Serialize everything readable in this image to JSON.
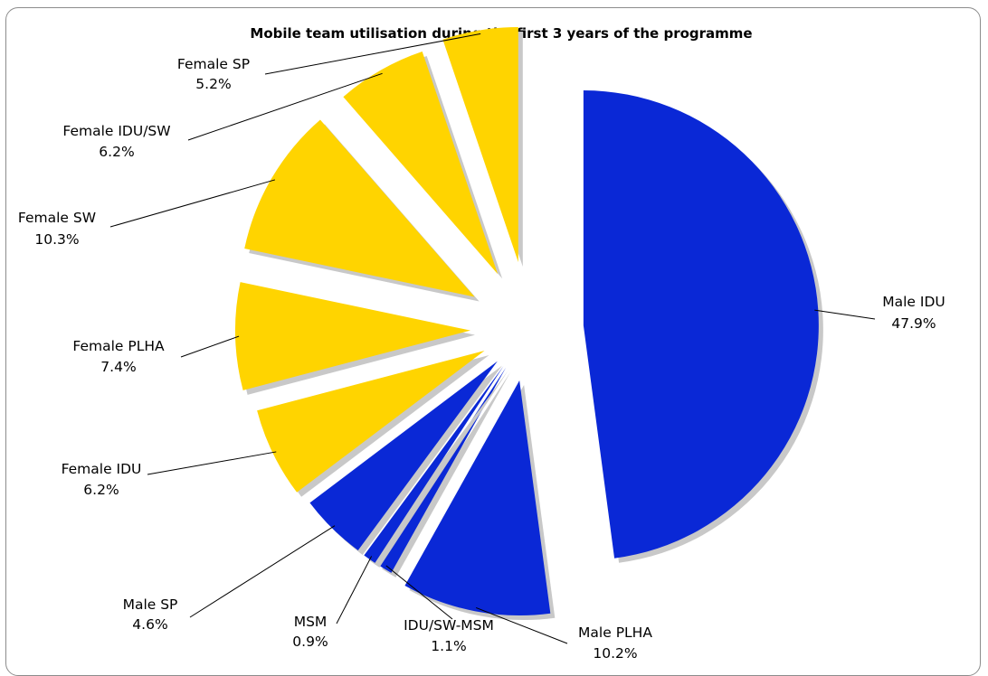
{
  "chart_data": {
    "type": "pie",
    "exploded": true,
    "title": "Mobile team utilisation during the first 3 years of the programme",
    "slices": [
      {
        "label": "Male IDU",
        "value_label": "47.9%",
        "value": 47.9,
        "color": "#0a28d6"
      },
      {
        "label": "Male PLHA",
        "value_label": "10.2%",
        "value": 10.2,
        "color": "#0a28d6"
      },
      {
        "label": "IDU/SW-MSM",
        "value_label": "1.1%",
        "value": 1.1,
        "color": "#0a28d6"
      },
      {
        "label": "MSM",
        "value_label": "0.9%",
        "value": 0.9,
        "color": "#0a28d6"
      },
      {
        "label": "Male SP",
        "value_label": "4.6%",
        "value": 4.6,
        "color": "#0a28d6"
      },
      {
        "label": "Female IDU",
        "value_label": "6.2%",
        "value": 6.2,
        "color": "#ffd400"
      },
      {
        "label": "Female PLHA",
        "value_label": "7.4%",
        "value": 7.4,
        "color": "#ffd400"
      },
      {
        "label": "Female SW",
        "value_label": "10.3%",
        "value": 10.3,
        "color": "#ffd400"
      },
      {
        "label": "Female IDU/SW",
        "value_label": "6.2%",
        "value": 6.2,
        "color": "#ffd400"
      },
      {
        "label": "Female SP",
        "value_label": "5.2%",
        "value": 5.2,
        "color": "#ffd400"
      }
    ]
  }
}
